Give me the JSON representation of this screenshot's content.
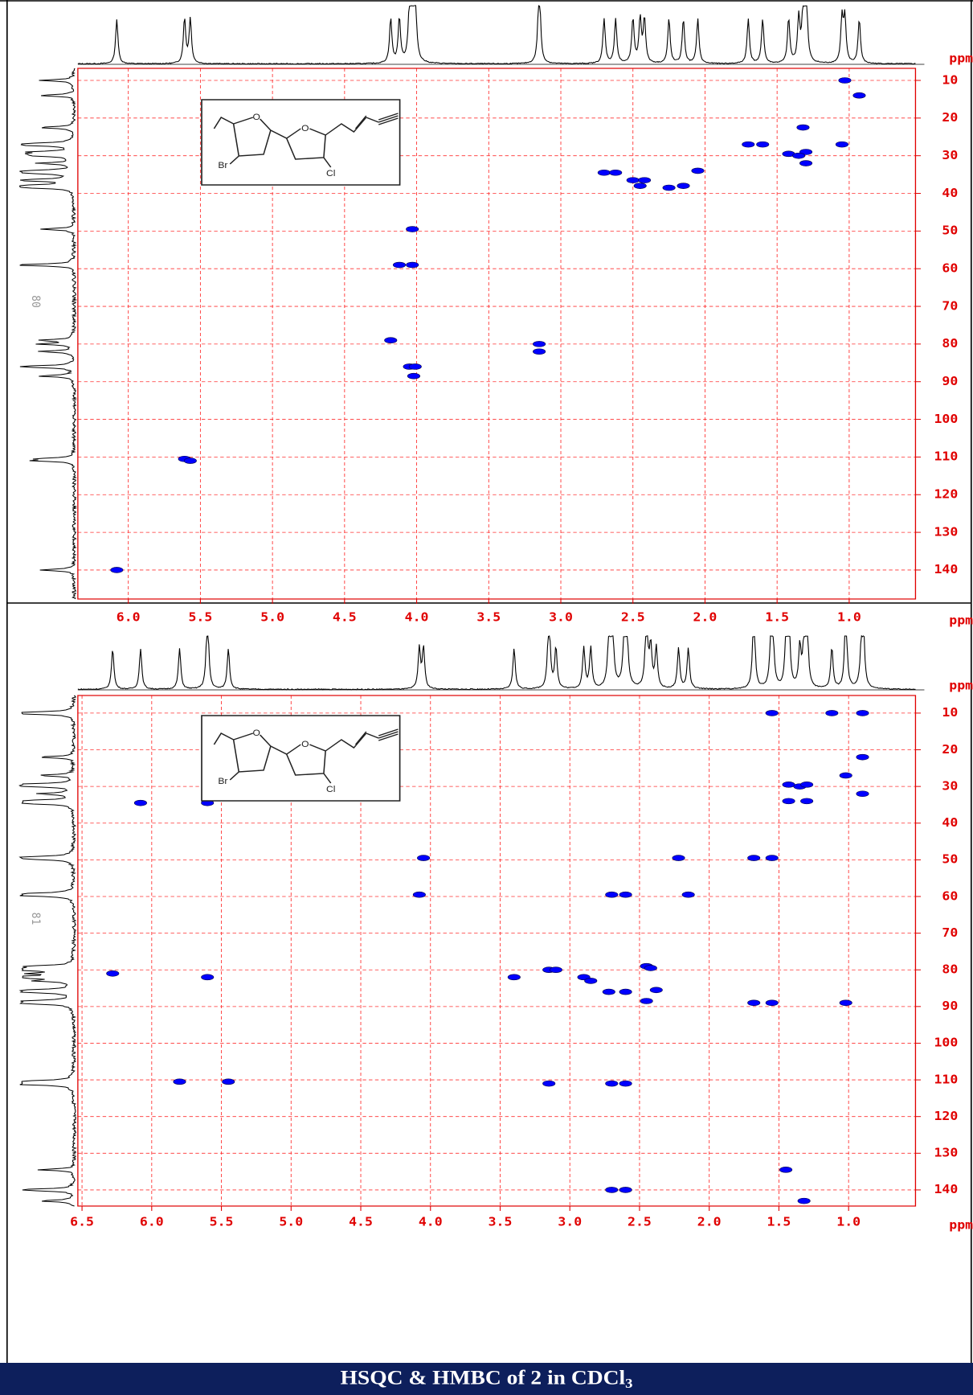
{
  "chart_data": [
    {
      "type": "scatter",
      "side_label": "80",
      "x_label": "ppm",
      "y_label": "ppm",
      "color": "#0000ff",
      "grid": true,
      "structure_labels": [
        "O",
        "O",
        "Br",
        "Cl"
      ],
      "xlim": [
        6.35,
        0.54
      ],
      "ylim": [
        6.8,
        147.7
      ],
      "xticks": [
        {
          "value": 6,
          "label": "6.0"
        },
        {
          "value": 5.5,
          "label": "5.5"
        },
        {
          "value": 5,
          "label": "5.0"
        },
        {
          "value": 4.5,
          "label": "4.5"
        },
        {
          "value": 4,
          "label": "4.0"
        },
        {
          "value": 3.5,
          "label": "3.5"
        },
        {
          "value": 3,
          "label": "3.0"
        },
        {
          "value": 2.5,
          "label": "2.5"
        },
        {
          "value": 2,
          "label": "2.0"
        },
        {
          "value": 1.5,
          "label": "1.5"
        },
        {
          "value": 1,
          "label": "1.0"
        }
      ],
      "yticks": [
        10,
        20,
        30,
        40,
        50,
        60,
        70,
        80,
        90,
        100,
        110,
        120,
        130,
        140
      ],
      "x": [
        1.03,
        0.93,
        1.32,
        1.7,
        1.6,
        1.42,
        1.3,
        1.35,
        1.3,
        1.05,
        2.7,
        2.62,
        2.5,
        2.45,
        2.42,
        2.25,
        2.15,
        2.05,
        4.03,
        4.12,
        4.03,
        4.18,
        3.15,
        3.15,
        4.05,
        4.01,
        4.02,
        5.61,
        5.57,
        6.08
      ],
      "y": [
        10,
        14,
        22.5,
        27,
        27,
        29.5,
        29,
        30,
        32,
        27,
        34.5,
        34.5,
        36.5,
        38,
        36.5,
        38.5,
        38,
        34,
        49.5,
        59,
        59,
        79,
        80,
        82,
        86,
        86,
        88.5,
        110.5,
        111,
        140
      ]
    },
    {
      "type": "scatter",
      "side_label": "81",
      "x_label": "ppm",
      "y_label": "ppm",
      "color": "#0000ff",
      "grid": true,
      "structure_labels": [
        "O",
        "O",
        "Br",
        "Cl"
      ],
      "xlim": [
        6.53,
        0.52
      ],
      "ylim": [
        5.2,
        144.4
      ],
      "xticks": [
        {
          "value": 6.5,
          "label": "6.5"
        },
        {
          "value": 6,
          "label": "6.0"
        },
        {
          "value": 5.5,
          "label": "5.5"
        },
        {
          "value": 5,
          "label": "5.0"
        },
        {
          "value": 4.5,
          "label": "4.5"
        },
        {
          "value": 4,
          "label": "4.0"
        },
        {
          "value": 3.5,
          "label": "3.5"
        },
        {
          "value": 3,
          "label": "3.0"
        },
        {
          "value": 2.5,
          "label": "2.5"
        },
        {
          "value": 2,
          "label": "2.0"
        },
        {
          "value": 1.5,
          "label": "1.5"
        },
        {
          "value": 1,
          "label": "1.0"
        }
      ],
      "yticks": [
        10,
        20,
        30,
        40,
        50,
        60,
        70,
        80,
        90,
        100,
        110,
        120,
        130,
        140
      ],
      "x": [
        1.55,
        1.12,
        0.9,
        0.9,
        1.02,
        1.43,
        1.35,
        1.3,
        1.43,
        1.3,
        0.9,
        6.08,
        5.6,
        2.22,
        1.55,
        1.68,
        2.7,
        2.6,
        2.15,
        4.08,
        4.05,
        3.15,
        3.1,
        2.45,
        2.42,
        3.4,
        2.9,
        2.85,
        5.6,
        6.28,
        2.72,
        2.6,
        2.38,
        2.45,
        1.55,
        1.68,
        1.02,
        5.8,
        5.45,
        3.15,
        2.7,
        2.6,
        2.7,
        2.6,
        1.45,
        1.32
      ],
      "y": [
        10,
        10,
        10,
        22,
        27,
        29.5,
        30,
        29.5,
        34,
        34,
        32,
        34.5,
        34.5,
        49.5,
        49.5,
        49.5,
        59.5,
        59.5,
        59.5,
        59.5,
        49.5,
        80,
        80,
        79,
        79.5,
        82,
        82,
        83,
        82,
        81,
        86,
        86,
        85.5,
        88.5,
        89,
        89,
        89,
        110.5,
        110.5,
        111,
        111,
        111,
        140,
        140,
        134.5,
        143
      ]
    }
  ],
  "caption": {
    "text": "HSQC & HMBC of 2 in CDCl",
    "subscript": "3"
  }
}
